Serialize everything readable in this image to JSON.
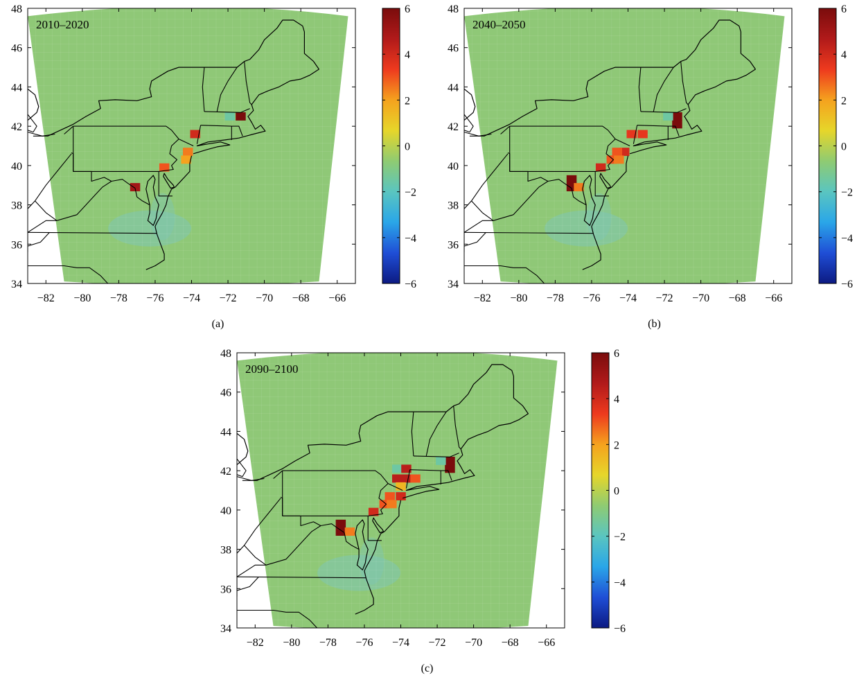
{
  "figure": {
    "panels": [
      {
        "label": "(a)",
        "period": "2010–2020",
        "hotspots": [
          {
            "lon": -71.3,
            "lat": 42.5,
            "value": 6
          },
          {
            "lon": -73.8,
            "lat": 41.6,
            "value": 4
          },
          {
            "lon": -74.2,
            "lat": 40.7,
            "value": 2.5
          },
          {
            "lon": -74.3,
            "lat": 40.3,
            "value": 2
          },
          {
            "lon": -75.5,
            "lat": 39.9,
            "value": 3
          },
          {
            "lon": -77.1,
            "lat": 38.9,
            "value": 5
          },
          {
            "lon": -71.9,
            "lat": 42.5,
            "value": -1.5
          }
        ]
      },
      {
        "label": "(b)",
        "period": "2040–2050",
        "hotspots": [
          {
            "lon": -71.3,
            "lat": 42.5,
            "value": 6
          },
          {
            "lon": -71.3,
            "lat": 42.1,
            "value": 6
          },
          {
            "lon": -71.8,
            "lat": 42.5,
            "value": -1.5
          },
          {
            "lon": -73.8,
            "lat": 41.6,
            "value": 3.5
          },
          {
            "lon": -73.2,
            "lat": 41.6,
            "value": 3.5
          },
          {
            "lon": -74.2,
            "lat": 40.7,
            "value": 4
          },
          {
            "lon": -74.6,
            "lat": 40.7,
            "value": 3
          },
          {
            "lon": -74.9,
            "lat": 40.3,
            "value": 3
          },
          {
            "lon": -74.5,
            "lat": 40.3,
            "value": 2.5
          },
          {
            "lon": -75.5,
            "lat": 39.9,
            "value": 4
          },
          {
            "lon": -77.1,
            "lat": 39.3,
            "value": 6
          },
          {
            "lon": -77.1,
            "lat": 38.9,
            "value": 6
          },
          {
            "lon": -76.7,
            "lat": 38.9,
            "value": 2.5
          }
        ]
      },
      {
        "label": "(c)",
        "period": "2090–2100",
        "hotspots": [
          {
            "lon": -71.3,
            "lat": 42.5,
            "value": 6
          },
          {
            "lon": -71.3,
            "lat": 42.1,
            "value": 6
          },
          {
            "lon": -71.8,
            "lat": 42.5,
            "value": -1.5
          },
          {
            "lon": -74.2,
            "lat": 42.1,
            "value": -1.5
          },
          {
            "lon": -73.7,
            "lat": 42.1,
            "value": 4.5
          },
          {
            "lon": -74.2,
            "lat": 41.6,
            "value": 4.5
          },
          {
            "lon": -73.7,
            "lat": 41.6,
            "value": 4.5
          },
          {
            "lon": -73.2,
            "lat": 41.6,
            "value": 3
          },
          {
            "lon": -74.0,
            "lat": 41.2,
            "value": 1.5
          },
          {
            "lon": -74.6,
            "lat": 40.7,
            "value": 3
          },
          {
            "lon": -74.0,
            "lat": 40.7,
            "value": 4
          },
          {
            "lon": -74.9,
            "lat": 40.3,
            "value": 3
          },
          {
            "lon": -74.5,
            "lat": 40.3,
            "value": 2.5
          },
          {
            "lon": -75.5,
            "lat": 39.9,
            "value": 4
          },
          {
            "lon": -77.3,
            "lat": 39.3,
            "value": 6
          },
          {
            "lon": -77.3,
            "lat": 38.9,
            "value": 6
          },
          {
            "lon": -76.8,
            "lat": 38.9,
            "value": 2.5
          }
        ]
      }
    ],
    "x_ticks": [
      -82,
      -80,
      -78,
      -76,
      -74,
      -72,
      -70,
      -68,
      -66
    ],
    "y_ticks": [
      34,
      36,
      38,
      40,
      42,
      44,
      46,
      48
    ],
    "x_range": [
      -83,
      -65
    ],
    "y_range": [
      34,
      48
    ],
    "colorbar": {
      "ticks": [
        6,
        4,
        2,
        0,
        -2,
        -4,
        -6
      ],
      "range": [
        -6,
        6
      ],
      "colors": [
        "#0c1a82",
        "#1f4ed6",
        "#2aa6e8",
        "#5ac5c0",
        "#8fcb72",
        "#e6d62a",
        "#f5a21e",
        "#ee3a1e",
        "#b11a1a",
        "#7a0c0c"
      ]
    },
    "field_color": "#8fc877",
    "lowfield_color": "#7fc6b4"
  }
}
